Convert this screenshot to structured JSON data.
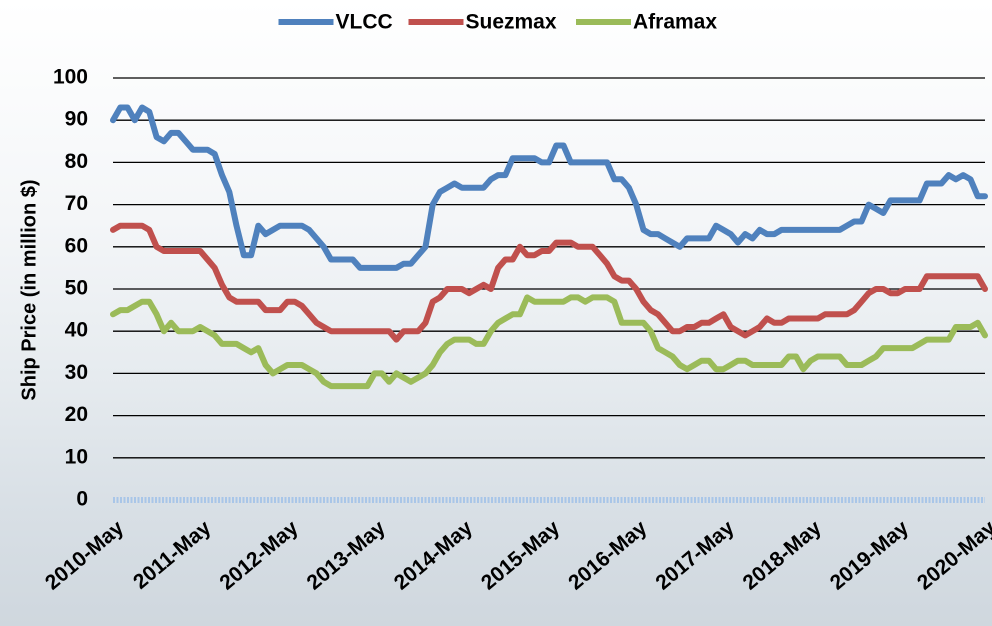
{
  "chart_data": {
    "type": "line",
    "y_label": "Ship Price (in million $)",
    "categories": [
      "2010-May",
      null,
      null,
      null,
      null,
      null,
      null,
      null,
      null,
      null,
      null,
      null,
      "2011-May",
      null,
      null,
      null,
      null,
      null,
      null,
      null,
      null,
      null,
      null,
      null,
      "2012-May",
      null,
      null,
      null,
      null,
      null,
      null,
      null,
      null,
      null,
      null,
      null,
      "2013-May",
      null,
      null,
      null,
      null,
      null,
      null,
      null,
      null,
      null,
      null,
      null,
      "2014-May",
      null,
      null,
      null,
      null,
      null,
      null,
      null,
      null,
      null,
      null,
      null,
      "2015-May",
      null,
      null,
      null,
      null,
      null,
      null,
      null,
      null,
      null,
      null,
      null,
      "2016-May",
      null,
      null,
      null,
      null,
      null,
      null,
      null,
      null,
      null,
      null,
      null,
      "2017-May",
      null,
      null,
      null,
      null,
      null,
      null,
      null,
      null,
      null,
      null,
      null,
      "2018-May",
      null,
      null,
      null,
      null,
      null,
      null,
      null,
      null,
      null,
      null,
      null,
      "2019-May",
      null,
      null,
      null,
      null,
      null,
      null,
      null,
      null,
      null,
      null,
      null,
      "2020-May"
    ],
    "series": [
      {
        "name": "VLCC",
        "color": "#4f81bd",
        "values": [
          90,
          93,
          93,
          90,
          93,
          92,
          86,
          85,
          87,
          87,
          85,
          83,
          83,
          83,
          82,
          77,
          73,
          65,
          58,
          58,
          65,
          63,
          64,
          65,
          65,
          65,
          65,
          64,
          62,
          60,
          57,
          57,
          57,
          57,
          55,
          55,
          55,
          55,
          55,
          55,
          56,
          56,
          58,
          60,
          70,
          73,
          74,
          75,
          74,
          74,
          74,
          74,
          76,
          77,
          77,
          81,
          81,
          81,
          81,
          80,
          80,
          84,
          84,
          80,
          80,
          80,
          80,
          80,
          80,
          76,
          76,
          74,
          70,
          64,
          63,
          63,
          62,
          61,
          60,
          62,
          62,
          62,
          62,
          65,
          64,
          63,
          61,
          63,
          62,
          64,
          63,
          63,
          64,
          64,
          64,
          64,
          64,
          64,
          64,
          64,
          64,
          65,
          66,
          66,
          70,
          69,
          68,
          71,
          71,
          71,
          71,
          71,
          75,
          75,
          75,
          77,
          76,
          77,
          76,
          72,
          72
        ]
      },
      {
        "name": "Suezmax",
        "color": "#c0504d",
        "values": [
          64,
          65,
          65,
          65,
          65,
          64,
          60,
          59,
          59,
          59,
          59,
          59,
          59,
          57,
          55,
          51,
          48,
          47,
          47,
          47,
          47,
          45,
          45,
          45,
          47,
          47,
          46,
          44,
          42,
          41,
          40,
          40,
          40,
          40,
          40,
          40,
          40,
          40,
          40,
          38,
          40,
          40,
          40,
          42,
          47,
          48,
          50,
          50,
          50,
          49,
          50,
          51,
          50,
          55,
          57,
          57,
          60,
          58,
          58,
          59,
          59,
          61,
          61,
          61,
          60,
          60,
          60,
          58,
          56,
          53,
          52,
          52,
          50,
          47,
          45,
          44,
          42,
          40,
          40,
          41,
          41,
          42,
          42,
          43,
          44,
          41,
          40,
          39,
          40,
          41,
          43,
          42,
          42,
          43,
          43,
          43,
          43,
          43,
          44,
          44,
          44,
          44,
          45,
          47,
          49,
          50,
          50,
          49,
          49,
          50,
          50,
          50,
          53,
          53,
          53,
          53,
          53,
          53,
          53,
          53,
          50
        ]
      },
      {
        "name": "Aframax",
        "color": "#9bbb59",
        "values": [
          44,
          45,
          45,
          46,
          47,
          47,
          44,
          40,
          42,
          40,
          40,
          40,
          41,
          40,
          39,
          37,
          37,
          37,
          36,
          35,
          36,
          32,
          30,
          31,
          32,
          32,
          32,
          31,
          30,
          28,
          27,
          27,
          27,
          27,
          27,
          27,
          30,
          30,
          28,
          30,
          29,
          28,
          29,
          30,
          32,
          35,
          37,
          38,
          38,
          38,
          37,
          37,
          40,
          42,
          43,
          44,
          44,
          48,
          47,
          47,
          47,
          47,
          47,
          48,
          48,
          47,
          48,
          48,
          48,
          47,
          42,
          42,
          42,
          42,
          40,
          36,
          35,
          34,
          32,
          31,
          32,
          33,
          33,
          31,
          31,
          32,
          33,
          33,
          32,
          32,
          32,
          32,
          32,
          34,
          34,
          31,
          33,
          34,
          34,
          34,
          34,
          32,
          32,
          32,
          33,
          34,
          36,
          36,
          36,
          36,
          36,
          37,
          38,
          38,
          38,
          38,
          41,
          41,
          41,
          42,
          39
        ]
      }
    ],
    "ylim": [
      0,
      100
    ],
    "yticks": [
      0,
      10,
      20,
      30,
      40,
      50,
      60,
      70,
      80,
      90,
      100
    ],
    "grid": true,
    "legend": "top"
  }
}
